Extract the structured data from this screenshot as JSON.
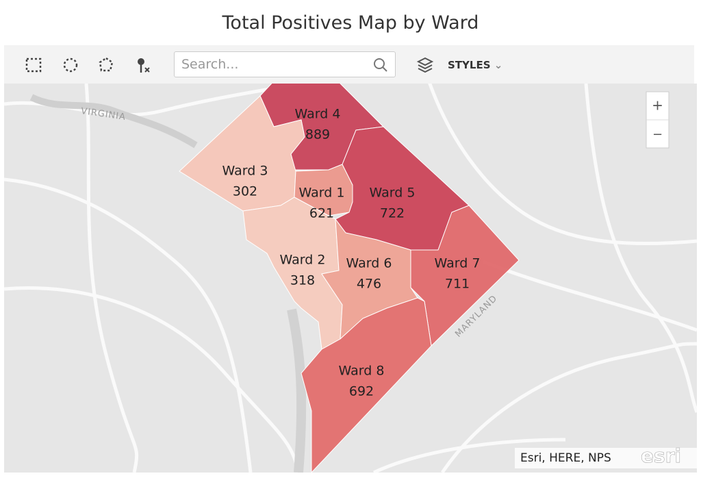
{
  "header": {
    "title": "Total Positives Map by Ward"
  },
  "toolbar": {
    "search_placeholder": "Search...",
    "styles_label": "STYLES"
  },
  "map": {
    "zoom_in": "+",
    "zoom_out": "−",
    "place_labels": [
      "VIRGINIA",
      "MARYLAND"
    ],
    "attribution": "Esri, HERE, NPS",
    "logo": "esri",
    "wards": [
      {
        "name": "Ward 4",
        "value": 889,
        "color": "#c8435a"
      },
      {
        "name": "Ward 3",
        "value": 302,
        "color": "#f5c6b8"
      },
      {
        "name": "Ward 1",
        "value": 621,
        "color": "#eb978b"
      },
      {
        "name": "Ward 5",
        "value": 722,
        "color": "#cb4558"
      },
      {
        "name": "Ward 2",
        "value": 318,
        "color": "#f6cabd"
      },
      {
        "name": "Ward 6",
        "value": 476,
        "color": "#eea293"
      },
      {
        "name": "Ward 7",
        "value": 711,
        "color": "#e0696b"
      },
      {
        "name": "Ward 8",
        "value": 692,
        "color": "#e36e6d"
      }
    ]
  }
}
